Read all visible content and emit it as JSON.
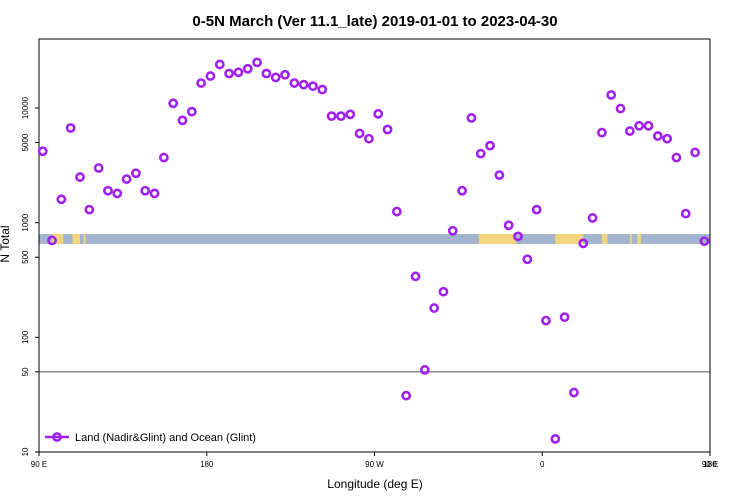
{
  "chart_data": {
    "type": "scatter",
    "title": "0-5N March (Ver 11.1_late)   2019-01-01 to 2023-04-30",
    "xlabel": "Longitude (deg E)",
    "ylabel": "N Total",
    "x_scale": "linear",
    "y_scale": "log",
    "xlim": [
      90,
      450
    ],
    "ylim": [
      10,
      40000
    ],
    "x_ticks": [
      {
        "value": 90,
        "label": "90 E"
      },
      {
        "value": 180,
        "label": "180"
      },
      {
        "value": 270,
        "label": "90 W"
      },
      {
        "value": 360,
        "label": "0"
      },
      {
        "value": 450,
        "label": "90 E"
      },
      {
        "value": 540,
        "label": "180"
      }
    ],
    "y_ticks": [
      {
        "value": 10,
        "label": "10"
      },
      {
        "value": 50,
        "label": "50"
      },
      {
        "value": 100,
        "label": "100"
      },
      {
        "value": 500,
        "label": "500"
      },
      {
        "value": 1000,
        "label": "1000"
      },
      {
        "value": 5000,
        "label": "5000"
      },
      {
        "value": 10000,
        "label": "10000"
      }
    ],
    "reference_line": {
      "y": 50,
      "color": "#555555"
    },
    "grid": false,
    "legend": {
      "position": "bottom-left"
    },
    "land_strip": {
      "ocean_color": "#a3b5cf",
      "land_color": "#f2d47c"
    },
    "series": [
      {
        "name": "Land (Nadir&Glint) and Ocean (Glint)",
        "color": "#a020f0",
        "x": [
          92,
          97,
          102,
          107,
          112,
          117,
          122,
          127,
          132,
          137,
          142,
          147,
          152,
          157,
          162,
          167,
          172,
          177,
          182,
          187,
          192,
          197,
          202,
          207,
          212,
          217,
          222,
          227,
          232,
          237,
          242,
          247,
          252,
          257,
          262,
          267,
          272,
          277,
          282,
          287,
          292,
          297,
          302,
          307,
          312,
          317,
          322,
          327,
          332,
          337,
          342,
          347,
          352,
          357,
          362,
          367,
          372,
          377,
          382,
          387,
          392,
          397,
          402,
          407,
          412,
          417,
          422,
          427,
          432,
          437,
          442,
          447
        ],
        "y": [
          4200,
          700,
          1600,
          6700,
          2500,
          1300,
          3000,
          1900,
          1800,
          2400,
          2700,
          1900,
          1800,
          3700,
          11000,
          7800,
          9300,
          16500,
          19000,
          24000,
          20000,
          20500,
          22000,
          25000,
          20000,
          18500,
          19500,
          16500,
          16000,
          15500,
          14500,
          8500,
          8500,
          8800,
          6000,
          5400,
          8900,
          6500,
          1250,
          31,
          340,
          52,
          180,
          250,
          850,
          1900,
          8200,
          4000,
          4700,
          2600,
          950,
          760,
          480,
          1300,
          140,
          13,
          150,
          33,
          660,
          1100,
          6100,
          13000,
          9900,
          6300,
          7000,
          7000,
          5700,
          5400,
          3700,
          1200,
          4100,
          690
        ]
      }
    ]
  }
}
